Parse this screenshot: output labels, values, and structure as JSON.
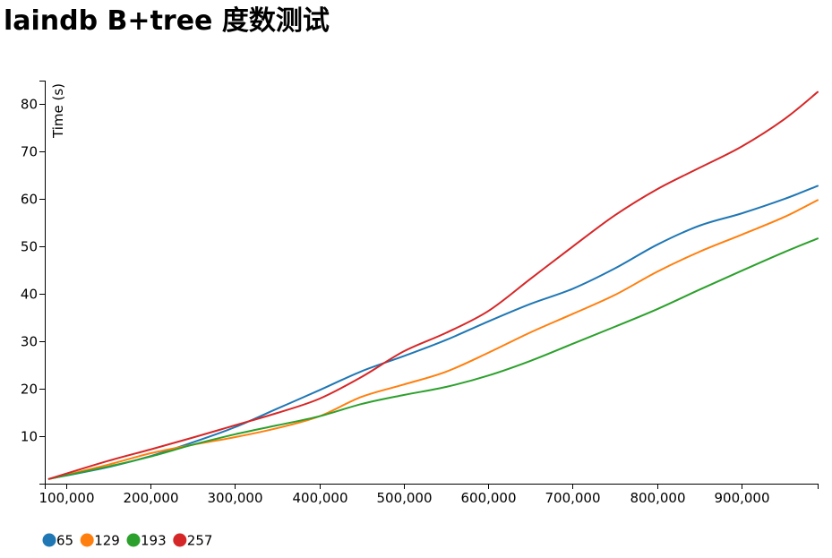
{
  "colors": {
    "series_1": "#1f77b4",
    "series_2": "#ff7f0e",
    "series_3": "#2ca02c",
    "series_4": "#d62728",
    "axis": "#000000",
    "background": "#ffffff"
  },
  "chart_data": {
    "type": "line",
    "title": "laindb B+tree 度数测试",
    "xlabel": "",
    "ylabel": "Time (s)",
    "xlim": [
      75000,
      990000
    ],
    "ylim": [
      0,
      85
    ],
    "grid": false,
    "legend_position": "bottom-left",
    "x_ticks": [
      100000,
      200000,
      300000,
      400000,
      500000,
      600000,
      700000,
      800000,
      900000
    ],
    "x_tick_labels": [
      "100,000",
      "200,000",
      "300,000",
      "400,000",
      "500,000",
      "600,000",
      "700,000",
      "800,000",
      "900,000"
    ],
    "y_ticks": [
      10,
      20,
      30,
      40,
      50,
      60,
      70,
      80
    ],
    "y_tick_labels": [
      "10",
      "20",
      "30",
      "40",
      "50",
      "60",
      "70",
      "80"
    ],
    "x": [
      80000,
      150000,
      200000,
      250000,
      300000,
      350000,
      400000,
      450000,
      500000,
      550000,
      600000,
      650000,
      700000,
      750000,
      800000,
      850000,
      900000,
      950000,
      990000
    ],
    "series": [
      {
        "name": "65",
        "color": "#1f77b4",
        "values": [
          1.0,
          3.5,
          5.8,
          8.7,
          11.9,
          15.8,
          19.7,
          23.7,
          26.9,
          30.3,
          34.2,
          37.9,
          41.1,
          45.4,
          50.4,
          54.4,
          57.0,
          60.0,
          62.8
        ]
      },
      {
        "name": "129",
        "color": "#ff7f0e",
        "values": [
          1.0,
          4.0,
          6.4,
          8.2,
          9.8,
          11.7,
          14.2,
          18.3,
          20.9,
          23.6,
          27.6,
          31.9,
          35.8,
          39.8,
          44.7,
          48.9,
          52.5,
          56.2,
          59.8
        ]
      },
      {
        "name": "193",
        "color": "#2ca02c",
        "values": [
          1.0,
          3.6,
          5.7,
          8.2,
          10.4,
          12.3,
          14.2,
          16.8,
          18.7,
          20.4,
          22.8,
          25.9,
          29.5,
          33.1,
          36.8,
          40.9,
          44.9,
          48.8,
          51.7
        ]
      },
      {
        "name": "257",
        "color": "#d62728",
        "values": [
          1.0,
          4.8,
          7.2,
          9.7,
          12.3,
          14.9,
          17.9,
          22.5,
          27.9,
          31.8,
          36.4,
          43.2,
          50.0,
          56.6,
          62.1,
          66.6,
          71.1,
          76.8,
          82.6
        ]
      }
    ]
  }
}
